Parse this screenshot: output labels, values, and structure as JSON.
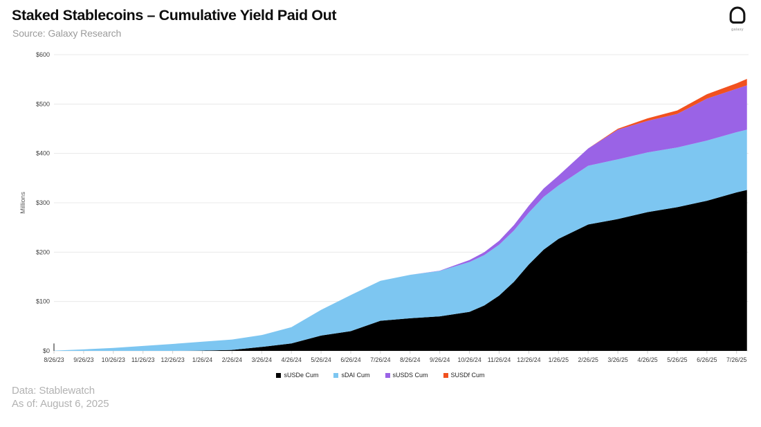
{
  "header": {
    "title": "Staked Stablecoins – Cumulative Yield Paid Out",
    "source": "Source: Galaxy Research"
  },
  "logo": {
    "label": "galaxy"
  },
  "footer": {
    "line1": "Data: Stablewatch",
    "line2": "As of: August 6, 2025"
  },
  "chart_data": {
    "type": "area",
    "subtype": "stacked",
    "title": "Staked Stablecoins – Cumulative Yield Paid Out",
    "xlabel": "",
    "ylabel": "Millions",
    "ylim": [
      0,
      600
    ],
    "y_ticks": [
      "$0",
      "$100",
      "$200",
      "$300",
      "$400",
      "$500",
      "$600"
    ],
    "grid": true,
    "legend_position": "bottom",
    "x_tick_labels": [
      "8/26/23",
      "9/26/23",
      "10/26/23",
      "11/26/23",
      "12/26/23",
      "1/26/24",
      "2/26/24",
      "3/26/24",
      "4/26/24",
      "5/26/24",
      "6/26/24",
      "7/26/24",
      "8/26/24",
      "9/26/24",
      "10/26/24",
      "11/26/24",
      "12/26/24",
      "1/26/25",
      "2/26/25",
      "3/26/25",
      "4/26/25",
      "5/26/25",
      "6/26/25",
      "7/26/25"
    ],
    "t_note": "t is months after 8/26/23; values are cumulative yield paid, $ millions",
    "t": [
      0,
      1,
      2,
      3,
      4,
      5,
      6,
      7,
      8,
      9,
      10,
      11,
      12,
      13,
      14,
      14.5,
      15,
      15.5,
      16,
      16.5,
      17,
      18,
      19,
      20,
      21,
      22,
      23,
      23.35
    ],
    "series": [
      {
        "name": "sUSDe Cum",
        "color": "#000000",
        "values": [
          0,
          0,
          0,
          0,
          0,
          0.5,
          2,
          8,
          15,
          31,
          40,
          61,
          66,
          70,
          79,
          92,
          112,
          140,
          175,
          205,
          227,
          256,
          267,
          281,
          291,
          304,
          321,
          326
        ]
      },
      {
        "name": "sDAI Cum",
        "color": "#7dc6f1",
        "values": [
          0.5,
          3,
          6,
          10,
          14,
          18,
          21,
          24,
          33,
          52,
          73,
          81,
          88,
          92,
          101,
          102,
          103,
          104,
          105,
          107,
          108,
          119,
          121,
          121,
          121,
          122,
          122,
          122
        ]
      },
      {
        "name": "sUSDS Cum",
        "color": "#9a63e6",
        "values": [
          0,
          0,
          0,
          0,
          0,
          0,
          0,
          0,
          0,
          0,
          0,
          0,
          0,
          0.5,
          4,
          6,
          8,
          11,
          14,
          17,
          20,
          35,
          60,
          64,
          68,
          85,
          88,
          90
        ]
      },
      {
        "name": "SUSDf Cum",
        "color": "#f1511f",
        "values": [
          0,
          0,
          0,
          0,
          0,
          0,
          0,
          0,
          0,
          0,
          0,
          0,
          0,
          0,
          0,
          0,
          0,
          0,
          0,
          0,
          0,
          0,
          2,
          5,
          7,
          9,
          11,
          13
        ]
      }
    ],
    "artifact_spike": {
      "t": 0,
      "value": 15
    }
  }
}
